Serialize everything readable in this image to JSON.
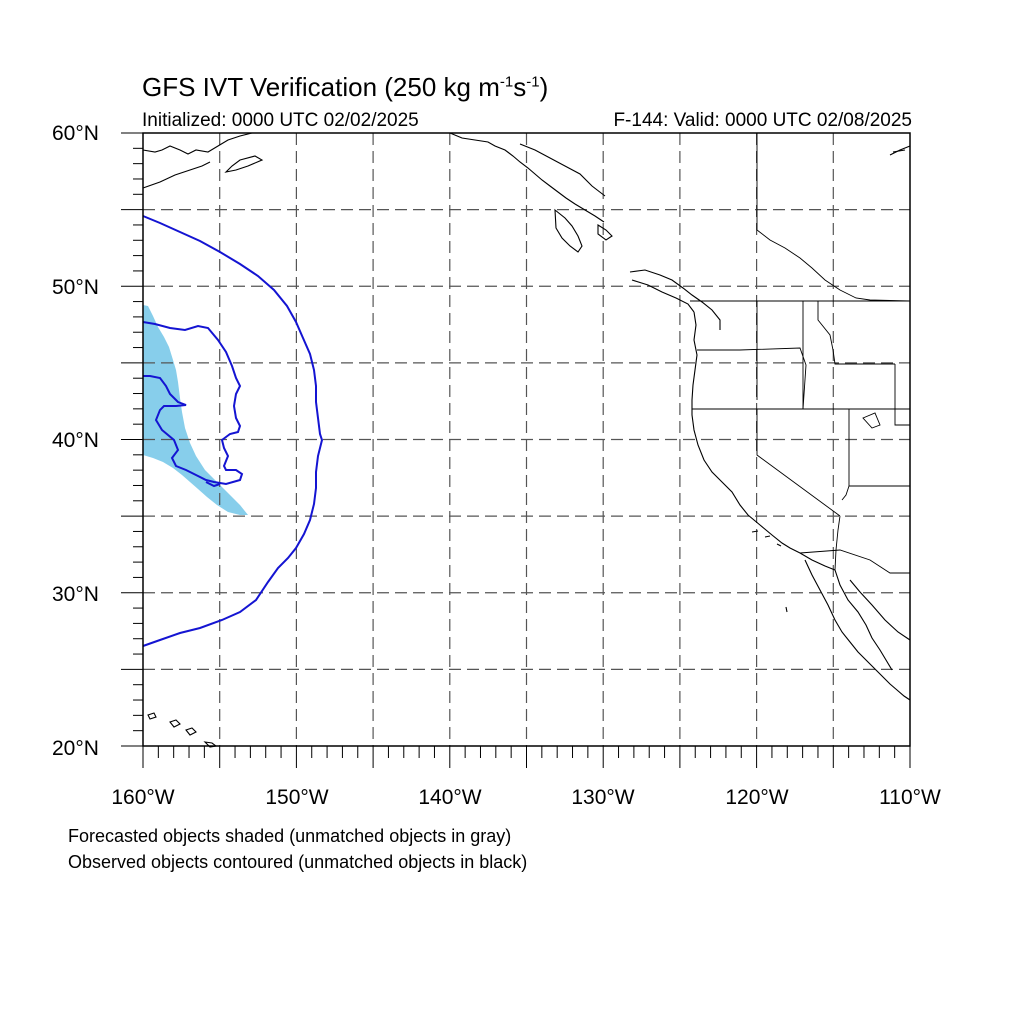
{
  "title": {
    "main": "GFS IVT Verification (250 kg m",
    "exp1": "-1",
    "mid": "s",
    "exp2": "-1",
    "close": ")"
  },
  "initialized": "Initialized: 0000 UTC 02/02/2025",
  "valid": "F-144: Valid: 0000 UTC 02/08/2025",
  "lat_labels": [
    "60°N",
    "50°N",
    "40°N",
    "30°N",
    "20°N"
  ],
  "lon_labels": [
    "160°W",
    "150°W",
    "140°W",
    "130°W",
    "120°W",
    "110°W"
  ],
  "notes": [
    "Forecasted objects shaded (unmatched objects in gray)",
    "Observed objects contoured (unmatched objects in black)"
  ],
  "colors": {
    "forecast_fill": "#87CEEB",
    "observed_contour": "#1414d2",
    "coastline": "#000000",
    "grid": "#555555"
  },
  "map_extent": {
    "lon": [
      -160,
      -110
    ],
    "lat": [
      20,
      60
    ]
  }
}
